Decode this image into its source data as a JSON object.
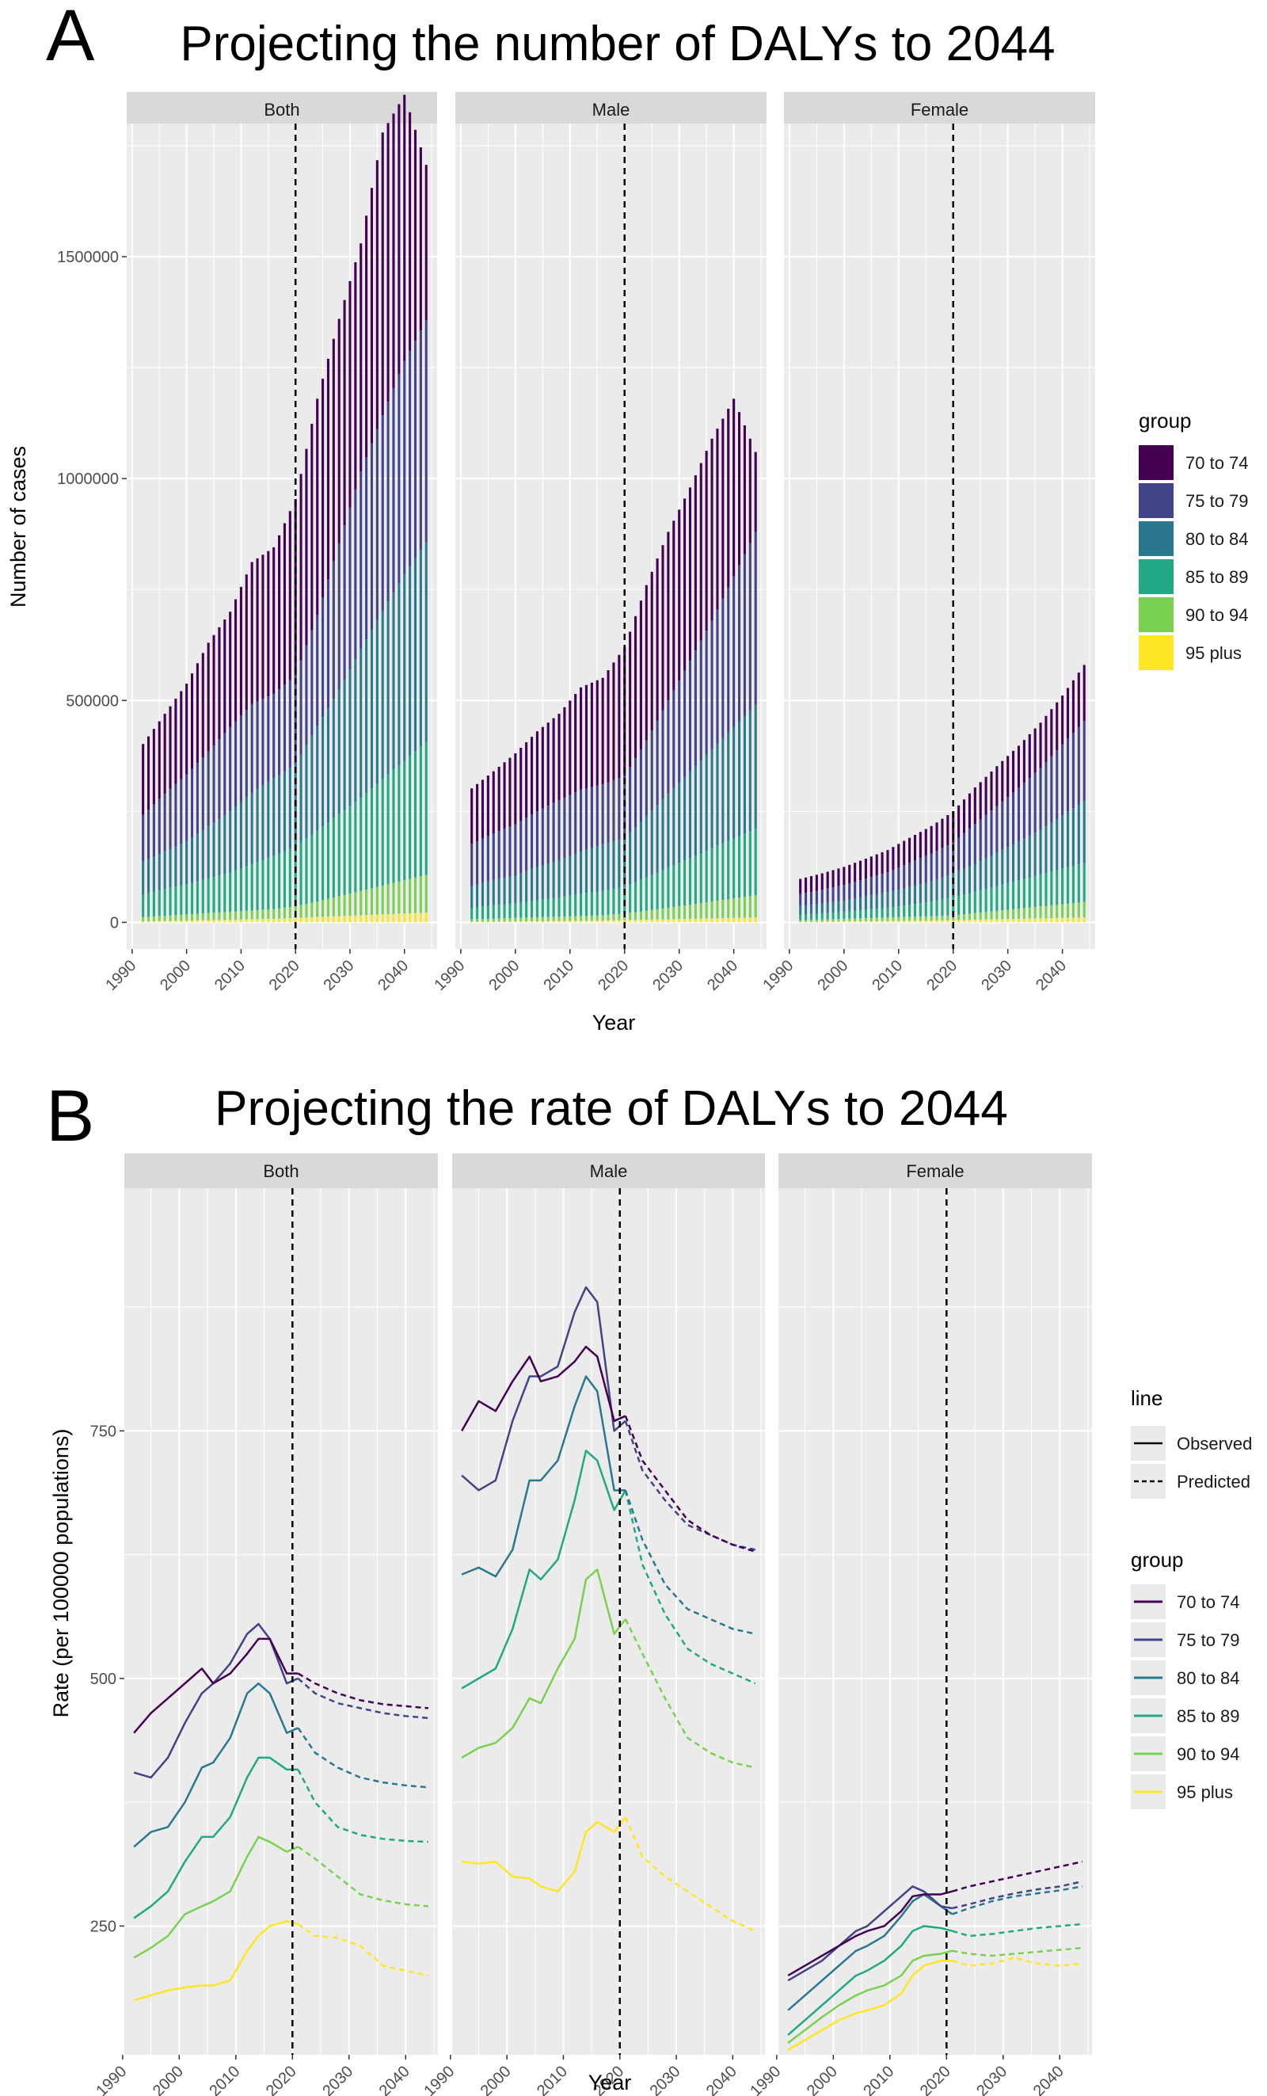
{
  "panel_letters": {
    "a": "A",
    "b": "B"
  },
  "colors": {
    "70 to 74": "#440154",
    "75 to 79": "#414487",
    "80 to 84": "#2A788E",
    "85 to 89": "#22A884",
    "90 to 94": "#7AD151",
    "95 plus": "#FDE725",
    "panel_bg": "#EBEBEB",
    "strip_bg": "#D9D9D9",
    "grid": "#FFFFFF"
  },
  "chart_data": [
    {
      "type": "bar",
      "title": "Projecting the number of DALYs to 2044",
      "xlabel": "Year",
      "ylabel": "Number of cases",
      "xlim": [
        1989,
        2046
      ],
      "ylim": [
        -60000,
        1800000
      ],
      "x_ticks": [
        1990,
        2000,
        2010,
        2020,
        2030,
        2040
      ],
      "y_ticks": [
        0,
        500000,
        1000000,
        1500000
      ],
      "y_tick_labels": [
        "0",
        "500000",
        "1000000",
        "1500000"
      ],
      "vline_x": 2020,
      "stacked": true,
      "facets": [
        "Both",
        "Male",
        "Female"
      ],
      "legend": {
        "title": "group",
        "entries": [
          "70 to 74",
          "75 to 79",
          "80 to 84",
          "85 to 89",
          "90 to 94",
          "95 plus"
        ]
      },
      "series_totals": {
        "Both": {
          "x": [
            1992,
            1996,
            2000,
            2004,
            2008,
            2012,
            2016,
            2020,
            2024,
            2028,
            2032,
            2036,
            2040,
            2044
          ],
          "95 plus": [
            2000,
            3000,
            4000,
            5000,
            6000,
            7000,
            8000,
            10000,
            12000,
            14000,
            16000,
            18000,
            20000,
            22000
          ],
          "90 to 94": [
            10000,
            12000,
            14000,
            16000,
            18000,
            20000,
            22000,
            26000,
            35000,
            45000,
            55000,
            65000,
            75000,
            85000
          ],
          "85 to 89": [
            50000,
            60000,
            68000,
            78000,
            88000,
            105000,
            120000,
            135000,
            160000,
            185000,
            210000,
            240000,
            270000,
            300000
          ],
          "80 to 84": [
            75000,
            85000,
            97000,
            118000,
            138000,
            160000,
            175000,
            185000,
            235000,
            280000,
            335000,
            380000,
            420000,
            450000
          ],
          "75 to 79": [
            105000,
            130000,
            150000,
            168000,
            190000,
            200000,
            190000,
            200000,
            250000,
            330000,
            400000,
            440000,
            480000,
            500000
          ],
          "70 to 74": [
            160000,
            180000,
            205000,
            245000,
            260000,
            320000,
            330000,
            398000,
            488000,
            506000,
            514000,
            637000,
            600000,
            350000
          ]
        },
        "Male": {
          "x": [
            1992,
            1996,
            2000,
            2004,
            2008,
            2012,
            2016,
            2020,
            2024,
            2028,
            2032,
            2036,
            2040,
            2044
          ],
          "95 plus": [
            1000,
            1500,
            2000,
            2500,
            3000,
            3500,
            4000,
            5000,
            6000,
            7000,
            8000,
            9000,
            10000,
            11000
          ],
          "90 to 94": [
            6000,
            7000,
            8000,
            9000,
            10000,
            11000,
            12000,
            15000,
            20000,
            26000,
            32000,
            38000,
            44000,
            50000
          ],
          "85 to 89": [
            25000,
            30000,
            33000,
            38000,
            43000,
            50000,
            55000,
            60000,
            75000,
            90000,
            105000,
            120000,
            135000,
            150000
          ],
          "80 to 84": [
            50000,
            57000,
            63000,
            76000,
            84000,
            95000,
            105000,
            110000,
            139000,
            167000,
            195000,
            223000,
            251000,
            279000
          ],
          "75 to 79": [
            95000,
            105000,
            115000,
            125000,
            135000,
            140000,
            135000,
            140000,
            170000,
            210000,
            250000,
            290000,
            340000,
            390000
          ],
          "70 to 74": [
            125000,
            140000,
            160000,
            180000,
            195000,
            230000,
            240000,
            290000,
            350000,
            380000,
            390000,
            410000,
            400000,
            180000
          ]
        },
        "Female": {
          "x": [
            1992,
            1996,
            2000,
            2004,
            2008,
            2012,
            2016,
            2020,
            2024,
            2028,
            2032,
            2036,
            2040,
            2044
          ],
          "95 plus": [
            1000,
            1500,
            2000,
            2500,
            3000,
            3500,
            4000,
            5000,
            6000,
            7000,
            8000,
            9000,
            10000,
            11000
          ],
          "90 to 94": [
            4000,
            5000,
            6000,
            7000,
            8000,
            9000,
            10000,
            11000,
            15000,
            19000,
            23000,
            27000,
            31000,
            35000
          ],
          "85 to 89": [
            12000,
            14000,
            16000,
            19000,
            22000,
            27000,
            33000,
            40000,
            48000,
            56000,
            64000,
            72000,
            80000,
            88000
          ],
          "80 to 84": [
            20000,
            22000,
            25000,
            30000,
            35000,
            40000,
            45000,
            54000,
            63000,
            75000,
            88000,
            100000,
            120000,
            140000
          ],
          "75 to 79": [
            27000,
            31000,
            35000,
            40000,
            45000,
            55000,
            63000,
            70000,
            90000,
            105000,
            120000,
            140000,
            160000,
            180000
          ],
          "70 to 74": [
            34000,
            37000,
            41000,
            45000,
            50000,
            56000,
            62000,
            70000,
            82000,
            90000,
            95000,
            102000,
            110000,
            126000
          ]
        }
      }
    },
    {
      "type": "line",
      "title": "Projecting the rate of DALYs to 2044",
      "xlabel": "Year",
      "ylabel": "Rate (per 100000 populations)",
      "xlim": [
        1990.3,
        2045.7
      ],
      "ylim": [
        120,
        995
      ],
      "x_ticks": [
        1990,
        2000,
        2010,
        2020,
        2030,
        2040
      ],
      "y_ticks": [
        250,
        500,
        750
      ],
      "vline_x": 2020,
      "facets": [
        "Both",
        "Male",
        "Female"
      ],
      "legend_line": {
        "title": "line",
        "entries": [
          "Observed",
          "Predicted"
        ]
      },
      "legend": {
        "title": "group",
        "entries": [
          "70 to 74",
          "75 to 79",
          "80 to 84",
          "85 to 89",
          "90 to 94",
          "95 plus"
        ]
      },
      "observed_x": [
        1992,
        1995,
        1998,
        2001,
        2004,
        2006,
        2009,
        2012,
        2014,
        2016,
        2019,
        2021
      ],
      "predicted_x": [
        2021,
        2024,
        2028,
        2032,
        2036,
        2040,
        2044
      ],
      "series": {
        "Both": {
          "70 to 74": {
            "observed": [
              445,
              465,
              480,
              495,
              510,
              495,
              505,
              525,
              540,
              540,
              505,
              505
            ],
            "predicted": [
              505,
              495,
              485,
              478,
              474,
              472,
              470
            ]
          },
          "75 to 79": {
            "observed": [
              405,
              400,
              420,
              455,
              485,
              495,
              515,
              545,
              555,
              540,
              495,
              500
            ],
            "predicted": [
              500,
              485,
              475,
              470,
              465,
              462,
              460
            ]
          },
          "80 to 84": {
            "observed": [
              330,
              345,
              350,
              375,
              410,
              415,
              440,
              485,
              495,
              485,
              445,
              450
            ],
            "predicted": [
              450,
              425,
              410,
              400,
              395,
              392,
              390
            ]
          },
          "85 to 89": {
            "observed": [
              258,
              270,
              285,
              315,
              340,
              340,
              360,
              400,
              420,
              420,
              408,
              408
            ],
            "predicted": [
              408,
              375,
              350,
              342,
              338,
              336,
              335
            ]
          },
          "90 to 94": {
            "observed": [
              218,
              228,
              240,
              262,
              270,
              275,
              285,
              320,
              340,
              335,
              325,
              330
            ],
            "predicted": [
              330,
              318,
              300,
              282,
              276,
              272,
              270
            ]
          },
          "95 plus": {
            "observed": [
              175,
              180,
              185,
              188,
              190,
              190,
              195,
              225,
              240,
              250,
              255,
              252
            ],
            "predicted": [
              252,
              240,
              238,
              230,
              210,
              205,
              200
            ]
          }
        },
        "Male": {
          "70 to 74": {
            "observed": [
              750,
              780,
              770,
              800,
              825,
              800,
              805,
              820,
              835,
              825,
              760,
              765
            ],
            "predicted": [
              765,
              720,
              690,
              660,
              645,
              635,
              628
            ]
          },
          "75 to 79": {
            "observed": [
              705,
              690,
              700,
              760,
              805,
              805,
              815,
              870,
              895,
              880,
              750,
              760
            ],
            "predicted": [
              760,
              710,
              680,
              655,
              645,
              635,
              630
            ]
          },
          "80 to 84": {
            "observed": [
              605,
              612,
              603,
              630,
              700,
              700,
              720,
              775,
              805,
              790,
              690,
              690
            ],
            "predicted": [
              690,
              640,
              595,
              570,
              560,
              550,
              545
            ]
          },
          "85 to 89": {
            "observed": [
              490,
              500,
              510,
              550,
              610,
              600,
              620,
              680,
              730,
              720,
              670,
              690
            ],
            "predicted": [
              690,
              615,
              565,
              530,
              515,
              505,
              495
            ]
          },
          "90 to 94": {
            "observed": [
              420,
              430,
              435,
              450,
              480,
              475,
              510,
              540,
              600,
              610,
              545,
              560
            ],
            "predicted": [
              560,
              525,
              480,
              440,
              425,
              415,
              410
            ]
          },
          "95 plus": {
            "observed": [
              315,
              313,
              315,
              300,
              298,
              290,
              285,
              305,
              345,
              355,
              345,
              360
            ],
            "predicted": [
              360,
              320,
              300,
              285,
              270,
              255,
              245
            ]
          }
        },
        "Female": {
          "70 to 74": {
            "observed": [
              200,
              210,
              220,
              230,
              240,
              245,
              250,
              265,
              280,
              282,
              282,
              285
            ],
            "predicted": [
              285,
              290,
              295,
              300,
              305,
              310,
              315
            ]
          },
          "75 to 79": {
            "observed": [
              195,
              205,
              215,
              230,
              245,
              250,
              265,
              280,
              290,
              285,
              270,
              268
            ],
            "predicted": [
              268,
              272,
              278,
              283,
              287,
              290,
              295
            ]
          },
          "80 to 84": {
            "observed": [
              165,
              180,
              195,
              210,
              225,
              230,
              240,
              260,
              275,
              282,
              270,
              262
            ],
            "predicted": [
              262,
              268,
              275,
              280,
              283,
              286,
              290
            ]
          },
          "85 to 89": {
            "observed": [
              140,
              155,
              170,
              185,
              200,
              205,
              215,
              230,
              245,
              250,
              248,
              245
            ],
            "predicted": [
              245,
              240,
              242,
              245,
              248,
              250,
              252
            ]
          },
          "90 to 94": {
            "observed": [
              132,
              145,
              158,
              170,
              180,
              185,
              190,
              200,
              215,
              220,
              222,
              225
            ],
            "predicted": [
              225,
              222,
              220,
              222,
              224,
              226,
              228
            ]
          },
          "95 plus": {
            "observed": [
              125,
              135,
              145,
              155,
              162,
              165,
              170,
              182,
              200,
              210,
              215,
              215
            ],
            "predicted": [
              215,
              210,
              212,
              218,
              212,
              210,
              212
            ]
          }
        }
      }
    }
  ]
}
